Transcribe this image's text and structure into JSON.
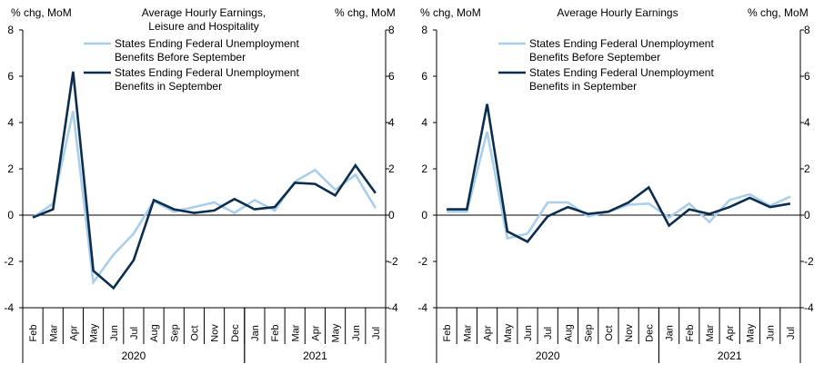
{
  "chart_data": [
    {
      "type": "line",
      "title_lines": [
        "Average  Hourly  Earnings,",
        "Leisure and Hospitality"
      ],
      "ylabel_left": "% chg, MoM",
      "ylabel_right": "% chg, MoM",
      "ylim": [
        -4,
        8
      ],
      "yticks": [
        "-4",
        "-2",
        "0",
        "2",
        "4",
        "6",
        "8"
      ],
      "categories": [
        "Feb",
        "Mar",
        "Apr",
        "May",
        "Jun",
        "Jul",
        "Aug",
        "Sep",
        "Oct",
        "Nov",
        "Dec",
        "Jan",
        "Feb",
        "Mar",
        "Apr",
        "May",
        "Jun",
        "Jul"
      ],
      "year_groups": [
        {
          "label": "2020",
          "start": 0,
          "end": 10
        },
        {
          "label": "2021",
          "start": 11,
          "end": 17
        }
      ],
      "series": [
        {
          "name": "States Ending Federal Unemployment Benefits Before September",
          "legend_lines": [
            "States Ending Federal Unemployment",
            "Benefits Before September"
          ],
          "color": "#a9cfea",
          "values": [
            -0.1,
            0.5,
            4.5,
            -2.9,
            -1.7,
            -0.8,
            0.6,
            0.15,
            0.35,
            0.55,
            0.1,
            0.65,
            0.2,
            1.45,
            1.95,
            1.1,
            1.75,
            0.3
          ]
        },
        {
          "name": "States Ending Federal Unemployment Benefits in September",
          "legend_lines": [
            "States Ending Federal Unemployment",
            "Benefits in September"
          ],
          "color": "#0b2d4f",
          "values": [
            -0.1,
            0.25,
            6.2,
            -2.4,
            -3.15,
            -1.95,
            0.65,
            0.25,
            0.1,
            0.2,
            0.7,
            0.25,
            0.35,
            1.4,
            1.35,
            0.85,
            2.15,
            0.95
          ]
        }
      ]
    },
    {
      "type": "line",
      "title_lines": [
        "Average  Hourly  Earnings"
      ],
      "ylabel_left": "% chg, MoM",
      "ylabel_right": "% chg, MoM",
      "ylim": [
        -4,
        8
      ],
      "yticks": [
        "-4",
        "-2",
        "0",
        "2",
        "4",
        "6",
        "8"
      ],
      "categories": [
        "Feb",
        "Mar",
        "Apr",
        "May",
        "Jun",
        "Jul",
        "Aug",
        "Sep",
        "Oct",
        "Nov",
        "Dec",
        "Jan",
        "Feb",
        "Mar",
        "Apr",
        "May",
        "Jun",
        "Jul"
      ],
      "year_groups": [
        {
          "label": "2020",
          "start": 0,
          "end": 10
        },
        {
          "label": "2021",
          "start": 11,
          "end": 17
        }
      ],
      "series": [
        {
          "name": "States Ending Federal Unemployment Benefits Before September",
          "legend_lines": [
            "States Ending Federal Unemployment",
            "Benefits Before September"
          ],
          "color": "#a9cfea",
          "values": [
            0.15,
            0.15,
            3.6,
            -1.0,
            -0.8,
            0.55,
            0.55,
            -0.05,
            0.15,
            0.45,
            0.5,
            -0.1,
            0.5,
            -0.3,
            0.65,
            0.9,
            0.4,
            0.8
          ]
        },
        {
          "name": "States Ending Federal Unemployment Benefits in September",
          "legend_lines": [
            "States Ending Federal Unemployment",
            "Benefits in September"
          ],
          "color": "#0b2d4f",
          "values": [
            0.25,
            0.25,
            4.8,
            -0.7,
            -1.15,
            -0.05,
            0.35,
            0.05,
            0.15,
            0.55,
            1.2,
            -0.45,
            0.25,
            0.05,
            0.35,
            0.75,
            0.35,
            0.5
          ]
        }
      ]
    }
  ]
}
